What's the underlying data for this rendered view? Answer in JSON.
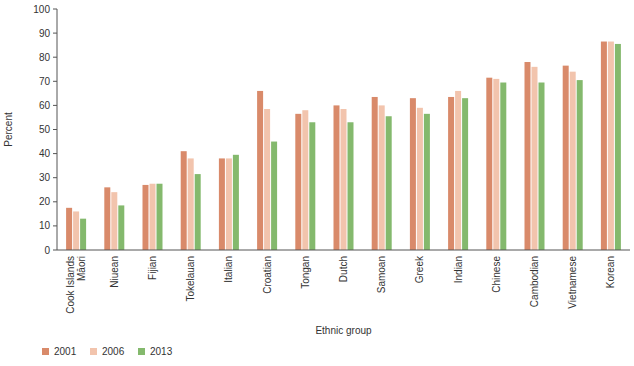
{
  "chart_data": {
    "type": "bar",
    "x_label": "Ethnic group",
    "y_label": "Percent",
    "categories": [
      "Cook Islands Māori",
      "Niuean",
      "Fijian",
      "Tokelauan",
      "Italian",
      "Croatian",
      "Tongan",
      "Dutch",
      "Samoan",
      "Greek",
      "Indian",
      "Chinese",
      "Cambodian",
      "Vietnamese",
      "Korean"
    ],
    "series": [
      {
        "name": "2001",
        "color": "#d98a6a",
        "values": [
          17.5,
          26,
          27,
          41,
          38,
          66,
          56.5,
          60,
          63.5,
          63,
          63.5,
          71.5,
          78,
          76.5,
          86.5
        ]
      },
      {
        "name": "2006",
        "color": "#f2c4ad",
        "values": [
          16,
          24,
          27.5,
          38,
          38,
          58.5,
          58,
          58.5,
          60,
          59,
          66,
          71,
          76,
          74,
          86.5
        ]
      },
      {
        "name": "2013",
        "color": "#84b96d",
        "values": [
          13,
          18.5,
          27.5,
          31.5,
          39.5,
          45,
          53,
          53,
          55.5,
          56.5,
          63,
          69.5,
          69.5,
          70.5,
          85.5
        ]
      }
    ],
    "ylim": [
      0,
      100
    ],
    "yticks": [
      0,
      10,
      20,
      30,
      40,
      50,
      60,
      70,
      80,
      90,
      100
    ],
    "grid": false,
    "legend": "bottom-left"
  }
}
